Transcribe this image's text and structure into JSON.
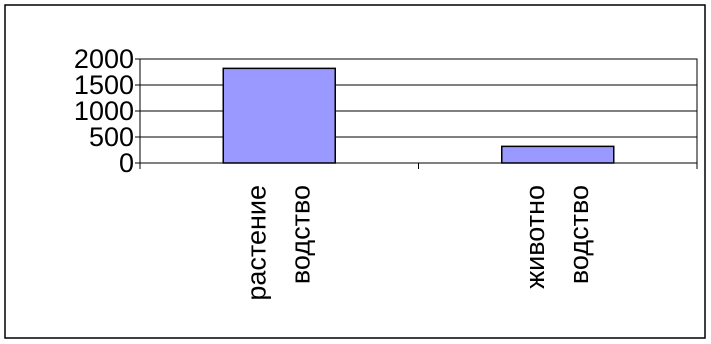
{
  "chart_data": {
    "type": "bar",
    "categories": [
      [
        "растение",
        "водство"
      ],
      [
        "животно",
        "водство"
      ]
    ],
    "values": [
      1820,
      320
    ],
    "ylim": [
      0,
      2000
    ],
    "yticks": [
      0,
      500,
      1000,
      1500,
      2000
    ],
    "grid": true,
    "legend": "none",
    "title": "",
    "xlabel": "",
    "ylabel": "",
    "colors": {
      "bar_fill": "#9999ff",
      "bar_stroke": "#000000",
      "plot_background": "#ffffff",
      "gridline": "#000000",
      "frame": "#000000"
    }
  }
}
